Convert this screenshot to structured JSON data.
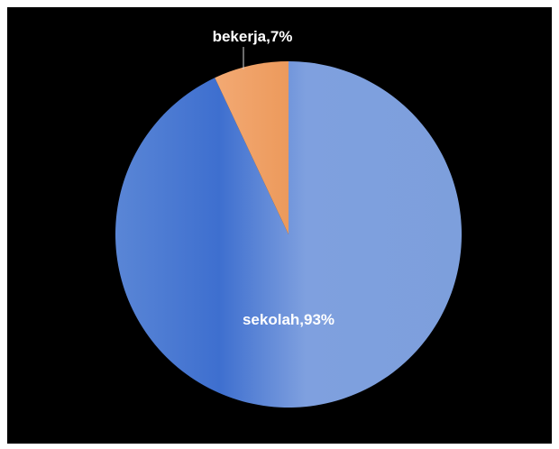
{
  "chart_data": {
    "type": "pie",
    "title": "",
    "start_angle": "12 o'clock",
    "direction": "clockwise",
    "slices": [
      {
        "label": "sekolah",
        "value": 93,
        "display": "sekolah,93%",
        "color": "#6f95d8",
        "label_color": "#ffffff"
      },
      {
        "label": "bekerja",
        "value": 7,
        "display": "bekerja,7%",
        "color": "#f0a063",
        "label_color": "#ffffff"
      }
    ],
    "background": "#000000",
    "legend": "none"
  }
}
